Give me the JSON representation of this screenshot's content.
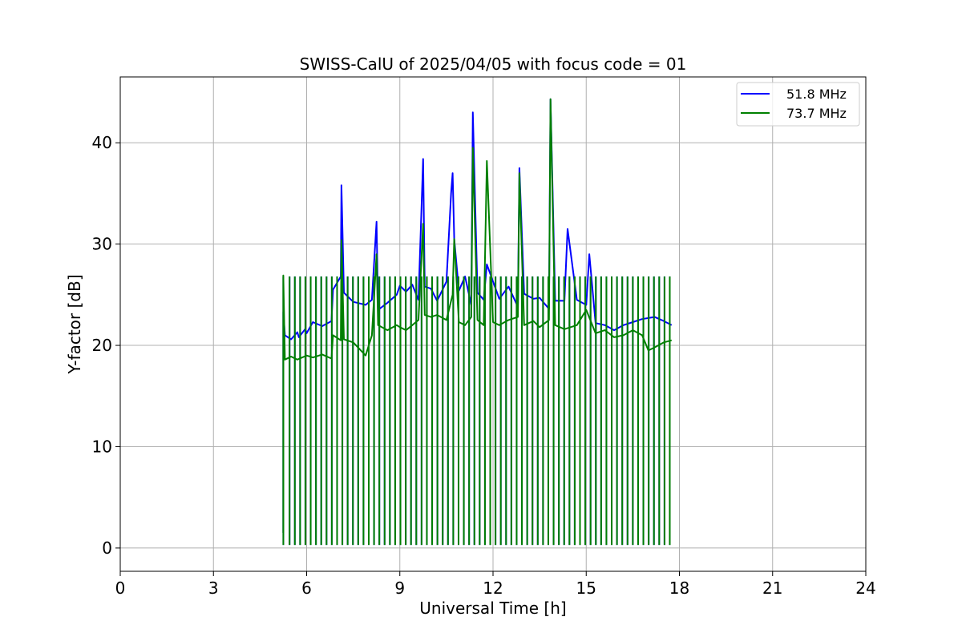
{
  "chart_data": {
    "type": "line",
    "title": "SWISS-CalU of 2025/04/05 with focus code = 01",
    "xlabel": "Universal Time [h]",
    "ylabel": "Y-factor [dB]",
    "xlim": [
      0,
      24
    ],
    "ylim": [
      -2.3,
      46.5
    ],
    "xticks": [
      0,
      3,
      6,
      9,
      12,
      15,
      18,
      21,
      24
    ],
    "yticks": [
      0,
      10,
      20,
      30,
      40
    ],
    "xtick_labels": [
      "0",
      "3",
      "6",
      "9",
      "12",
      "15",
      "18",
      "21",
      "24"
    ],
    "ytick_labels": [
      "0",
      "10",
      "20",
      "30",
      "40"
    ],
    "grid": true,
    "legend_position": "top-right",
    "series": [
      {
        "name": "51.8 MHz",
        "color": "#0000ff",
        "x": [
          5.25,
          5.25,
          5.3,
          5.5,
          5.7,
          5.75,
          5.95,
          6.0,
          6.2,
          6.5,
          6.8,
          6.85,
          7.1,
          7.12,
          7.2,
          7.5,
          7.9,
          8.1,
          8.25,
          8.3,
          8.6,
          8.9,
          9.0,
          9.2,
          9.4,
          9.6,
          9.75,
          9.8,
          10.0,
          10.2,
          10.5,
          10.65,
          10.7,
          10.75,
          10.9,
          11.1,
          11.3,
          11.35,
          11.5,
          11.7,
          11.8,
          12.0,
          12.2,
          12.5,
          12.8,
          12.85,
          13.0,
          13.3,
          13.5,
          13.8,
          13.85,
          14.0,
          14.3,
          14.4,
          14.7,
          15.0,
          15.1,
          15.3,
          15.6,
          15.9,
          16.2,
          16.5,
          16.8,
          17.2,
          17.5,
          17.75
        ],
        "y": [
          1.5,
          23.3,
          21.0,
          20.6,
          21.3,
          20.8,
          21.6,
          21.2,
          22.3,
          21.9,
          22.4,
          25.5,
          26.8,
          35.8,
          25.2,
          24.3,
          24.0,
          24.5,
          32.2,
          23.5,
          24.2,
          25.0,
          25.9,
          25.3,
          26.0,
          24.5,
          38.4,
          25.8,
          25.6,
          24.4,
          26.3,
          35.0,
          37.0,
          30.5,
          25.4,
          26.8,
          24.0,
          43.0,
          25.2,
          24.5,
          28.0,
          26.3,
          24.6,
          25.8,
          23.8,
          37.5,
          25.1,
          24.6,
          24.7,
          23.6,
          44.3,
          24.4,
          24.4,
          31.5,
          24.5,
          24.0,
          29.0,
          22.2,
          22.0,
          21.5,
          22.0,
          22.3,
          22.6,
          22.8,
          22.4,
          22.0
        ]
      },
      {
        "name": "73.7 MHz",
        "color": "#008000",
        "x": [
          5.25,
          5.25,
          5.3,
          5.5,
          5.7,
          6.0,
          6.2,
          6.5,
          6.8,
          6.85,
          7.1,
          7.12,
          7.2,
          7.5,
          7.9,
          8.1,
          8.25,
          8.3,
          8.6,
          8.9,
          9.0,
          9.2,
          9.4,
          9.6,
          9.75,
          9.8,
          10.0,
          10.2,
          10.5,
          10.7,
          10.75,
          10.9,
          11.1,
          11.3,
          11.35,
          11.5,
          11.7,
          11.8,
          12.0,
          12.2,
          12.5,
          12.8,
          12.85,
          13.0,
          13.3,
          13.5,
          13.8,
          13.85,
          14.0,
          14.3,
          14.7,
          15.0,
          15.3,
          15.6,
          15.9,
          16.2,
          16.5,
          16.8,
          17.0,
          17.2,
          17.5,
          17.75
        ],
        "y": [
          1.5,
          26.9,
          18.6,
          18.9,
          18.6,
          19.0,
          18.8,
          19.1,
          18.7,
          21.0,
          20.5,
          30.4,
          20.6,
          20.3,
          19.0,
          21.0,
          29.0,
          22.0,
          21.5,
          22.0,
          21.8,
          21.5,
          22.0,
          22.5,
          32.0,
          23.0,
          22.8,
          23.0,
          22.5,
          25.0,
          30.5,
          22.3,
          22.0,
          22.8,
          39.5,
          22.5,
          22.0,
          38.2,
          22.3,
          22.0,
          22.5,
          22.8,
          37.0,
          22.0,
          22.4,
          21.8,
          22.5,
          44.3,
          22.0,
          21.6,
          22.0,
          23.5,
          21.2,
          21.5,
          20.8,
          21.0,
          21.5,
          21.0,
          19.5,
          19.8,
          20.3,
          20.5
        ]
      }
    ],
    "calibration_spikes": {
      "times": [
        5.25,
        5.45,
        5.62,
        5.79,
        5.96,
        6.13,
        6.3,
        6.47,
        6.64,
        6.81,
        6.98,
        7.15,
        7.32,
        7.49,
        7.66,
        7.83,
        8.0,
        8.17,
        8.34,
        8.51,
        8.68,
        8.85,
        9.02,
        9.19,
        9.36,
        9.53,
        9.7,
        9.87,
        10.04,
        10.21,
        10.38,
        10.55,
        10.72,
        10.89,
        11.06,
        11.23,
        11.4,
        11.57,
        11.74,
        11.91,
        12.08,
        12.25,
        12.42,
        12.59,
        12.76,
        12.93,
        13.1,
        13.27,
        13.44,
        13.61,
        13.78,
        13.95,
        14.12,
        14.29,
        14.46,
        14.63,
        14.8,
        14.97,
        15.14,
        15.31,
        15.48,
        15.65,
        15.82,
        15.99,
        16.16,
        16.33,
        16.5,
        16.67,
        16.84,
        17.01,
        17.18,
        17.35,
        17.52,
        17.69
      ],
      "low": 0.3,
      "high": 26.8
    }
  }
}
